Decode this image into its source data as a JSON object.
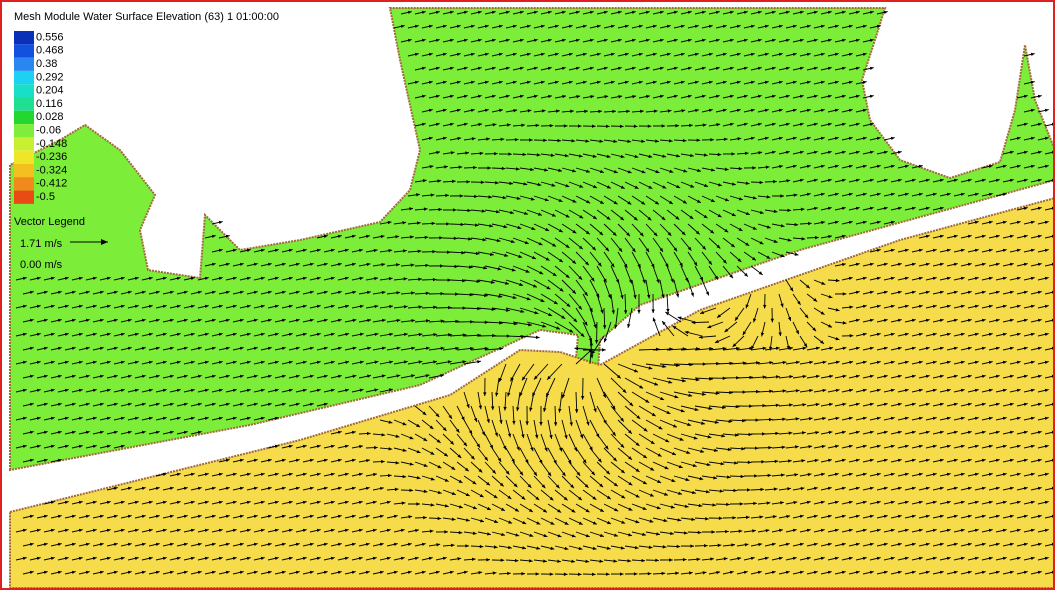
{
  "title": "Mesh Module Water Surface Elevation (63) 1 01:00:00",
  "legend": {
    "entries": [
      {
        "label": "0.556",
        "color": "#0a2fb8"
      },
      {
        "label": "0.468",
        "color": "#1450e0"
      },
      {
        "label": "0.38",
        "color": "#2a86f0"
      },
      {
        "label": "0.292",
        "color": "#1cd2f0"
      },
      {
        "label": "0.204",
        "color": "#18e0c8"
      },
      {
        "label": "0.116",
        "color": "#1ee090"
      },
      {
        "label": "0.028",
        "color": "#22d830"
      },
      {
        "label": "-0.06",
        "color": "#80ec3c"
      },
      {
        "label": "-0.148",
        "color": "#c8f030"
      },
      {
        "label": "-0.236",
        "color": "#f0e628"
      },
      {
        "label": "-0.324",
        "color": "#f4c020"
      },
      {
        "label": "-0.412",
        "color": "#f08a1c"
      },
      {
        "label": "-0.5",
        "color": "#e84c14"
      }
    ]
  },
  "vector_legend": {
    "title": "Vector Legend",
    "max": "1.71 m/s",
    "min": "0.00 m/s"
  }
}
